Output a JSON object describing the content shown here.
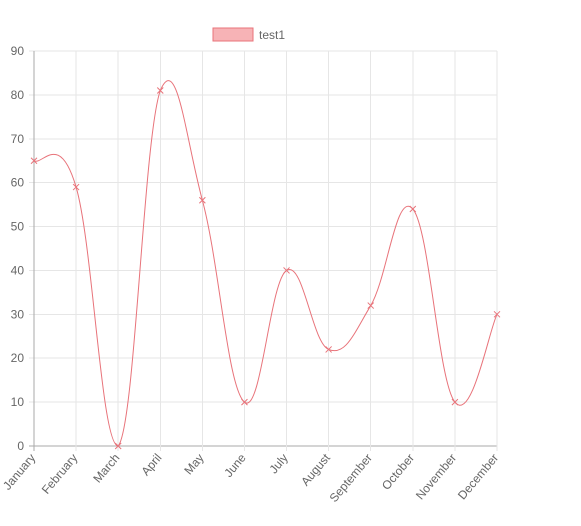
{
  "chart_data": {
    "type": "line",
    "categories": [
      "January",
      "February",
      "March",
      "April",
      "May",
      "June",
      "July",
      "August",
      "September",
      "October",
      "November",
      "December"
    ],
    "series": [
      {
        "name": "test1",
        "values": [
          65,
          59,
          0,
          81,
          56,
          10,
          40,
          22,
          32,
          54,
          10,
          30
        ],
        "color": "#e8737a",
        "fill": "#f7b3b6",
        "point_style": "cross"
      }
    ],
    "ylim": [
      0,
      90
    ],
    "yticks": [
      0,
      10,
      20,
      30,
      40,
      50,
      60,
      70,
      80,
      90
    ],
    "grid": true,
    "legend": "top-center",
    "curve": "smooth"
  }
}
